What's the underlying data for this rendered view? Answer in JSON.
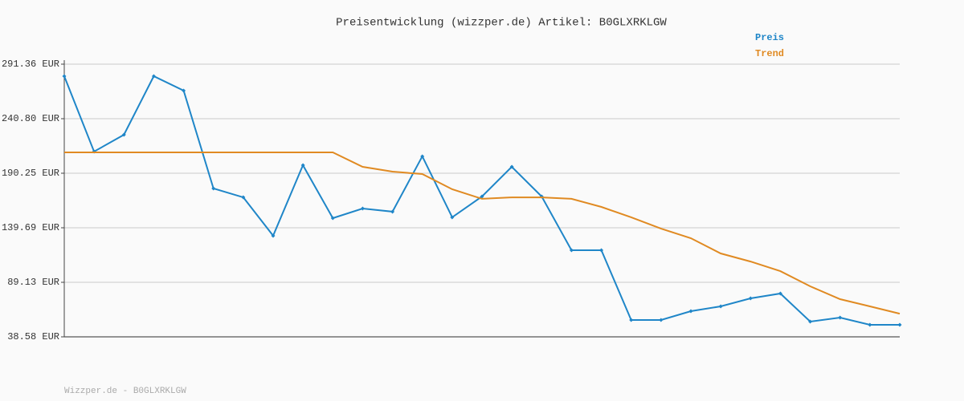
{
  "chart_data": {
    "type": "line",
    "title": "Preisentwicklung (wizzper.de) Artikel: B0GLXRKLGW",
    "categories": [
      null,
      null,
      null,
      null,
      null,
      null,
      null,
      null,
      null,
      null,
      null,
      null,
      null,
      null,
      null,
      null,
      null,
      null,
      null,
      null,
      null,
      null,
      null,
      null,
      null,
      null,
      null,
      null,
      null
    ],
    "series": [
      {
        "name": "Preis",
        "color": "#1f86c8",
        "values": [
          280.2,
          210.3,
          225.9,
          280.2,
          266.8,
          176.1,
          167.9,
          132.3,
          197.7,
          148.6,
          157.5,
          154.6,
          205.9,
          149.4,
          168.7,
          196.2,
          168.7,
          118.9,
          118.9,
          54.2,
          54.2,
          62.4,
          66.8,
          74.3,
          78.7,
          52.7,
          56.4,
          49.7,
          49.7
        ]
      },
      {
        "name": "Trend",
        "color": "#e08a22",
        "values": [
          209.6,
          209.6,
          209.6,
          209.6,
          209.6,
          209.6,
          209.6,
          209.6,
          209.6,
          209.6,
          196.2,
          191.7,
          189.5,
          175.4,
          166.5,
          167.9,
          167.9,
          166.5,
          159.0,
          149.4,
          138.9,
          130.0,
          115.9,
          108.4,
          99.5,
          85.4,
          73.5,
          66.8,
          60.1
        ]
      }
    ],
    "ylim": [
      38.58,
      291.36
    ],
    "yticks": [
      {
        "value": 38.58,
        "label": "38.58 EUR"
      },
      {
        "value": 89.13,
        "label": "89.13 EUR"
      },
      {
        "value": 139.69,
        "label": "139.69 EUR"
      },
      {
        "value": 190.25,
        "label": "190.25 EUR"
      },
      {
        "value": 240.8,
        "label": "240.80 EUR"
      },
      {
        "value": 291.36,
        "label": "291.36 EUR"
      }
    ],
    "grid": true,
    "legend": "top-right"
  },
  "footer": "Wizzper.de - B0GLXRKLGW"
}
